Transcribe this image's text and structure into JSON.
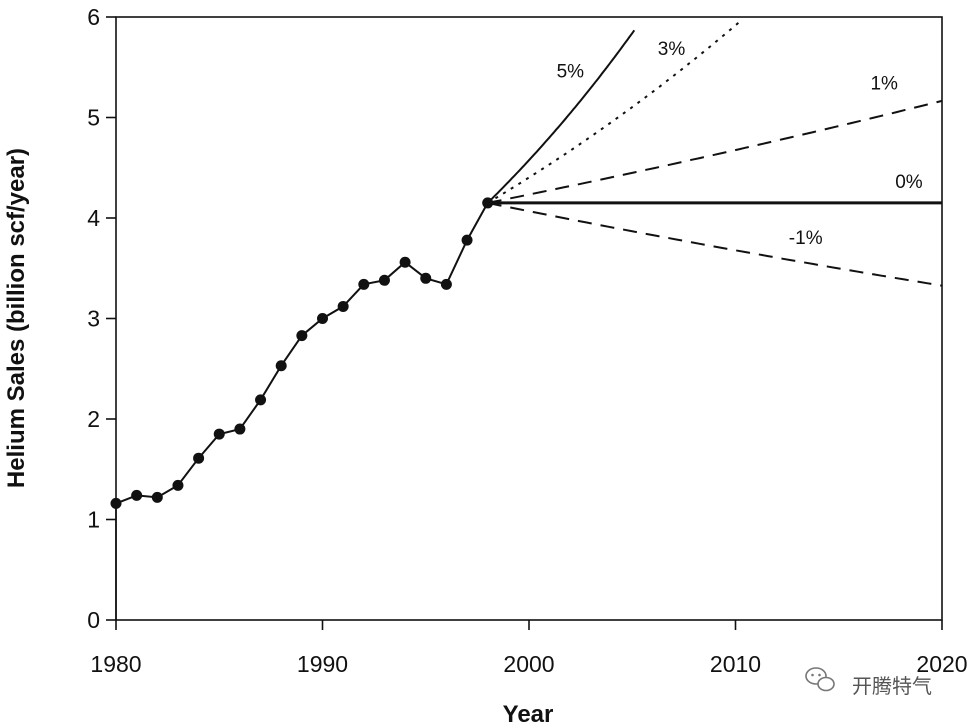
{
  "chart_data": {
    "type": "line",
    "xlabel": "Year",
    "ylabel": "Helium Sales (billion scf/year)",
    "xlim": [
      1980,
      2020
    ],
    "ylim": [
      0,
      6
    ],
    "x_ticks": [
      "1980",
      "1990",
      "2000",
      "2010",
      "2020"
    ],
    "y_ticks": [
      "0",
      "1",
      "2",
      "3",
      "4",
      "5",
      "6"
    ],
    "grid": false,
    "legend": "none",
    "historical": {
      "style": "solid line with circle markers",
      "x": [
        1980,
        1981,
        1982,
        1983,
        1984,
        1985,
        1986,
        1987,
        1988,
        1989,
        1990,
        1991,
        1992,
        1993,
        1994,
        1995,
        1996,
        1997,
        1998
      ],
      "y": [
        1.16,
        1.24,
        1.22,
        1.34,
        1.61,
        1.85,
        1.9,
        2.19,
        2.53,
        2.83,
        3.0,
        3.12,
        3.34,
        3.38,
        3.56,
        3.4,
        3.34,
        3.78,
        4.15
      ]
    },
    "projections": [
      {
        "label": "5%",
        "rate": 0.05,
        "style": "solid",
        "x_end": 2005.1
      },
      {
        "label": "3%",
        "rate": 0.03,
        "style": "dotted",
        "x_end": 2010.2
      },
      {
        "label": "1%",
        "rate": 0.01,
        "style": "dashed",
        "x_end": 2020
      },
      {
        "label": "0%",
        "rate": 0.0,
        "style": "solid-thick",
        "x_end": 2020
      },
      {
        "label": "-1%",
        "rate": -0.01,
        "style": "dashed",
        "x_end": 2020
      }
    ],
    "projection_start": {
      "x": 1998,
      "y": 4.15
    }
  },
  "watermark": {
    "text": "开腾特气"
  },
  "colors": {
    "line": "#111111",
    "background": "#ffffff"
  }
}
